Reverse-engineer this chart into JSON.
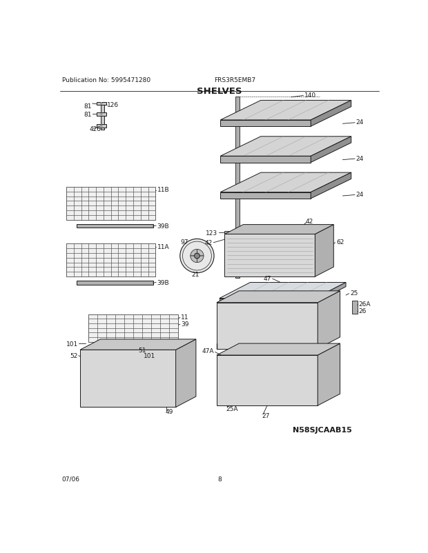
{
  "title": "SHELVES",
  "pub_no": "Publication No: 5995471280",
  "model": "FRS3R5EMB7",
  "date": "07/06",
  "page": "8",
  "watermark": "N58SJCAAB15",
  "bg_color": "#ffffff",
  "lc": "#1a1a1a",
  "tc": "#1a1a1a",
  "lfs": 6.5,
  "tfs": 8.5,
  "hfs": 6.5,
  "gray1": "#c8c8c8",
  "gray2": "#b0b0b0",
  "gray3": "#989898",
  "gray4": "#808080",
  "gray5": "#e8e8e8",
  "gray6": "#d8d8d8",
  "wire_color": "#555555",
  "shelf_face": "#d0d0d0",
  "shelf_side": "#a0a0a0",
  "shelf_top": "#e0e0e0"
}
